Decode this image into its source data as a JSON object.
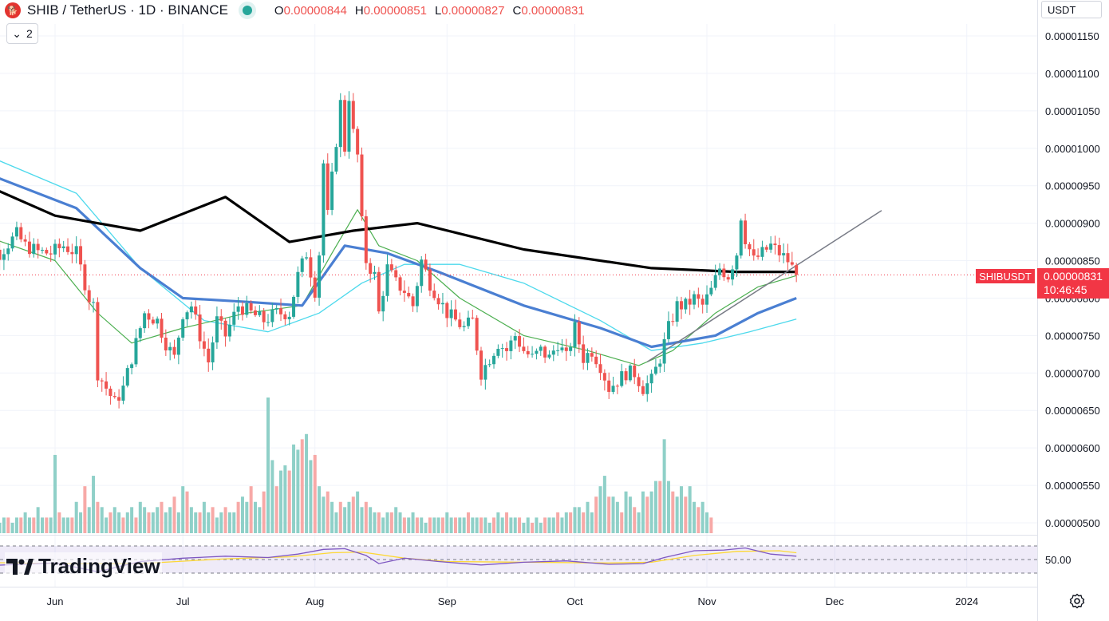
{
  "header": {
    "title": "SHIB / TetherUS · 1D · BINANCE",
    "ohlc": [
      {
        "label": "O",
        "value": "0.00000844"
      },
      {
        "label": "H",
        "value": "0.00000851"
      },
      {
        "label": "L",
        "value": "0.00000827"
      },
      {
        "label": "C",
        "value": "0.00000831"
      }
    ],
    "collapse_label": "2",
    "currency": "USDT"
  },
  "price_tag": {
    "symbol": "SHIBUSDT",
    "price": "0.00000831",
    "countdown": "10:46:45"
  },
  "brand": "TradingView",
  "colors": {
    "up": "#26a69a",
    "down": "#ef5350",
    "ma200": "#000000",
    "ma50": "#4a7fd2",
    "ma100": "#4dd9ec",
    "ma20": "#4caf50",
    "rsi": "#7e57c2",
    "rsi_ma": "#fdd835"
  },
  "chart_data": {
    "type": "candlestick",
    "ylim": [
      4.75e-06,
      1.175e-05
    ],
    "y_ticks": [
      "0.00001150",
      "0.00001100",
      "0.00001050",
      "0.00001000",
      "0.00000950",
      "0.00000900",
      "0.00000850",
      "0.00000800",
      "0.00000750",
      "0.00000700",
      "0.00000650",
      "0.00000600",
      "0.00000550",
      "0.00000500"
    ],
    "x_labels": [
      "Jun",
      "Jul",
      "Aug",
      "Sep",
      "Oct",
      "Nov",
      "Dec",
      "2024"
    ],
    "x_label_days": [
      0,
      30,
      61,
      92,
      122,
      153,
      183,
      214
    ],
    "last_day": 174,
    "candle_anchors": [
      [
        -20,
        8.7e-06
      ],
      [
        -16,
        8.7e-06
      ],
      [
        -13,
        8.6e-06
      ],
      [
        -9,
        8.85e-06
      ],
      [
        -7,
        8.7e-06
      ],
      [
        -4,
        8.62e-06
      ],
      [
        -1,
        8.6e-06
      ],
      [
        2,
        8.7e-06
      ],
      [
        5,
        8.6e-06
      ],
      [
        8,
        8e-06
      ],
      [
        9,
        7.9e-06
      ],
      [
        10,
        7e-06
      ],
      [
        12,
        6.8e-06
      ],
      [
        14,
        6.6e-06
      ],
      [
        16,
        6.8e-06
      ],
      [
        18,
        7.2e-06
      ],
      [
        20,
        7.6e-06
      ],
      [
        21,
        7.8e-06
      ],
      [
        24,
        7.7e-06
      ],
      [
        26,
        7.4e-06
      ],
      [
        28,
        7.2e-06
      ],
      [
        30,
        7.8e-06
      ],
      [
        32,
        7.9e-06
      ],
      [
        34,
        7.5e-06
      ],
      [
        36,
        7.15e-06
      ],
      [
        38,
        7.7e-06
      ],
      [
        40,
        7.5e-06
      ],
      [
        43,
        7.9e-06
      ],
      [
        46,
        7.8e-06
      ],
      [
        49,
        7.7e-06
      ],
      [
        52,
        7.8e-06
      ],
      [
        55,
        7.8e-06
      ],
      [
        57,
        8.3e-06
      ],
      [
        59,
        8.6e-06
      ],
      [
        61,
        8.1e-06
      ],
      [
        62,
        8.6e-06
      ],
      [
        63,
        9.8e-06
      ],
      [
        64,
        9.1e-06
      ],
      [
        65,
        9.6e-06
      ],
      [
        66,
        1.01e-05
      ],
      [
        67,
        1.06e-05
      ],
      [
        68,
        1e-05
      ],
      [
        69,
        1.07e-05
      ],
      [
        70,
        1.02e-05
      ],
      [
        71,
        9.9e-06
      ],
      [
        72,
        9e-06
      ],
      [
        73,
        8.5e-06
      ],
      [
        75,
        8.3e-06
      ],
      [
        76,
        7.8e-06
      ],
      [
        78,
        8.4e-06
      ],
      [
        80,
        8.2e-06
      ],
      [
        82,
        8.1e-06
      ],
      [
        84,
        7.9e-06
      ],
      [
        86,
        8.5e-06
      ],
      [
        88,
        8.2e-06
      ],
      [
        90,
        8e-06
      ],
      [
        92,
        7.8e-06
      ],
      [
        94,
        7.7e-06
      ],
      [
        96,
        7.6e-06
      ],
      [
        98,
        7.7e-06
      ],
      [
        100,
        7e-06
      ],
      [
        102,
        7.2e-06
      ],
      [
        104,
        7.4e-06
      ],
      [
        106,
        7.3e-06
      ],
      [
        108,
        7.5e-06
      ],
      [
        110,
        7.3e-06
      ],
      [
        112,
        7.2e-06
      ],
      [
        114,
        7.3e-06
      ],
      [
        116,
        7.2e-06
      ],
      [
        118,
        7.4e-06
      ],
      [
        120,
        7.2e-06
      ],
      [
        122,
        7.6e-06
      ],
      [
        124,
        7.2e-06
      ],
      [
        126,
        7.3e-06
      ],
      [
        128,
        7.1e-06
      ],
      [
        130,
        6.8e-06
      ],
      [
        132,
        6.9e-06
      ],
      [
        134,
        7e-06
      ],
      [
        136,
        7e-06
      ],
      [
        138,
        6.8e-06
      ],
      [
        140,
        6.9e-06
      ],
      [
        142,
        7.2e-06
      ],
      [
        144,
        7.6e-06
      ],
      [
        146,
        7.9e-06
      ],
      [
        148,
        7.9e-06
      ],
      [
        150,
        8e-06
      ],
      [
        152,
        7.9e-06
      ],
      [
        154,
        8.1e-06
      ],
      [
        156,
        8.4e-06
      ],
      [
        158,
        8.3e-06
      ],
      [
        160,
        8.6e-06
      ],
      [
        161,
        9.1e-06
      ],
      [
        162,
        8.8e-06
      ],
      [
        164,
        8.5e-06
      ],
      [
        166,
        8.6e-06
      ],
      [
        168,
        8.7e-06
      ],
      [
        170,
        8.6e-06
      ],
      [
        172,
        8.5e-06
      ],
      [
        174,
        8.31e-06
      ]
    ],
    "ma200": [
      [
        -20,
        9.6e-06
      ],
      [
        0,
        9.1e-06
      ],
      [
        20,
        8.9e-06
      ],
      [
        40,
        9.35e-06
      ],
      [
        55,
        8.75e-06
      ],
      [
        70,
        8.9e-06
      ],
      [
        85,
        9e-06
      ],
      [
        110,
        8.65e-06
      ],
      [
        140,
        8.4e-06
      ],
      [
        160,
        8.35e-06
      ],
      [
        174,
        8.35e-06
      ]
    ],
    "ma50": [
      [
        -20,
        9.75e-06
      ],
      [
        5,
        9.2e-06
      ],
      [
        20,
        8.4e-06
      ],
      [
        30,
        8e-06
      ],
      [
        45,
        7.95e-06
      ],
      [
        58,
        7.9e-06
      ],
      [
        68,
        8.7e-06
      ],
      [
        78,
        8.6e-06
      ],
      [
        90,
        8.35e-06
      ],
      [
        110,
        7.9e-06
      ],
      [
        128,
        7.6e-06
      ],
      [
        140,
        7.35e-06
      ],
      [
        155,
        7.5e-06
      ],
      [
        165,
        7.8e-06
      ],
      [
        174,
        8e-06
      ]
    ],
    "ma100": [
      [
        -20,
        1e-05
      ],
      [
        5,
        9.4e-06
      ],
      [
        20,
        8.4e-06
      ],
      [
        35,
        7.7e-06
      ],
      [
        50,
        7.55e-06
      ],
      [
        62,
        7.8e-06
      ],
      [
        72,
        8.2e-06
      ],
      [
        82,
        8.45e-06
      ],
      [
        95,
        8.45e-06
      ],
      [
        110,
        8.2e-06
      ],
      [
        128,
        7.7e-06
      ],
      [
        140,
        7.3e-06
      ],
      [
        152,
        7.4e-06
      ],
      [
        163,
        7.55e-06
      ],
      [
        174,
        7.72e-06
      ]
    ],
    "ma20": [
      [
        -20,
        8.9e-06
      ],
      [
        0,
        8.5e-06
      ],
      [
        10,
        7.8e-06
      ],
      [
        18,
        7.4e-06
      ],
      [
        30,
        7.6e-06
      ],
      [
        45,
        7.8e-06
      ],
      [
        58,
        7.9e-06
      ],
      [
        65,
        8.6e-06
      ],
      [
        71,
        9.18e-06
      ],
      [
        76,
        8.7e-06
      ],
      [
        85,
        8.5e-06
      ],
      [
        95,
        8e-06
      ],
      [
        110,
        7.5e-06
      ],
      [
        125,
        7.3e-06
      ],
      [
        137,
        7.1e-06
      ],
      [
        145,
        7.3e-06
      ],
      [
        155,
        7.8e-06
      ],
      [
        165,
        8.15e-06
      ],
      [
        174,
        8.3e-06
      ]
    ],
    "trendline": [
      [
        139,
        7.15e-06
      ],
      [
        194,
        9.17e-06
      ]
    ],
    "volume": [
      2,
      2,
      3,
      2,
      3,
      3,
      2,
      2,
      3,
      3,
      2,
      3,
      3,
      4,
      3,
      3,
      5,
      3,
      3,
      3,
      15,
      4,
      3,
      3,
      3,
      6,
      4,
      9,
      5,
      11,
      6,
      5,
      3,
      4,
      5,
      4,
      3,
      4,
      5,
      3,
      6,
      5,
      4,
      4,
      5,
      6,
      4,
      5,
      7,
      4,
      9,
      8,
      5,
      4,
      4,
      6,
      4,
      5,
      3,
      4,
      5,
      4,
      4,
      6,
      7,
      6,
      9,
      6,
      5,
      8,
      26,
      14,
      9,
      12,
      13,
      12,
      17,
      16,
      18,
      19,
      14,
      15,
      9,
      7,
      8,
      6,
      4,
      6,
      5,
      6,
      7,
      8,
      5,
      6,
      5,
      4,
      4,
      3,
      4,
      4,
      5,
      4,
      3,
      3,
      4,
      3,
      3,
      2,
      3,
      3,
      3,
      3,
      4,
      3,
      3,
      3,
      3,
      4,
      3,
      3,
      3,
      3,
      2,
      3,
      4,
      3,
      4,
      3,
      3,
      3,
      2,
      3,
      2,
      3,
      2,
      3,
      3,
      3,
      4,
      3,
      4,
      4,
      5,
      5,
      4,
      6,
      4,
      7,
      9,
      11,
      7,
      7,
      6,
      4,
      8,
      7,
      5,
      4,
      8,
      7,
      8,
      10,
      10,
      18,
      10,
      8,
      7,
      9,
      7,
      9,
      6,
      5,
      6,
      4,
      3
    ],
    "rsi_label": "50.00",
    "rsi": [
      [
        -20,
        40
      ],
      [
        0,
        45
      ],
      [
        10,
        32
      ],
      [
        20,
        47
      ],
      [
        30,
        52
      ],
      [
        40,
        55
      ],
      [
        50,
        53
      ],
      [
        57,
        58
      ],
      [
        63,
        65
      ],
      [
        68,
        66
      ],
      [
        73,
        56
      ],
      [
        76,
        44
      ],
      [
        82,
        52
      ],
      [
        90,
        47
      ],
      [
        100,
        42
      ],
      [
        110,
        46
      ],
      [
        120,
        48
      ],
      [
        130,
        43
      ],
      [
        138,
        44
      ],
      [
        143,
        53
      ],
      [
        150,
        63
      ],
      [
        157,
        64
      ],
      [
        162,
        67
      ],
      [
        168,
        58
      ],
      [
        174,
        55
      ]
    ],
    "rsi_ma": [
      [
        -20,
        46
      ],
      [
        0,
        44
      ],
      [
        20,
        44
      ],
      [
        40,
        51
      ],
      [
        55,
        54
      ],
      [
        65,
        60
      ],
      [
        72,
        61
      ],
      [
        82,
        52
      ],
      [
        92,
        47
      ],
      [
        110,
        46
      ],
      [
        130,
        45
      ],
      [
        140,
        46
      ],
      [
        150,
        56
      ],
      [
        160,
        62
      ],
      [
        170,
        63
      ],
      [
        174,
        60
      ]
    ]
  }
}
